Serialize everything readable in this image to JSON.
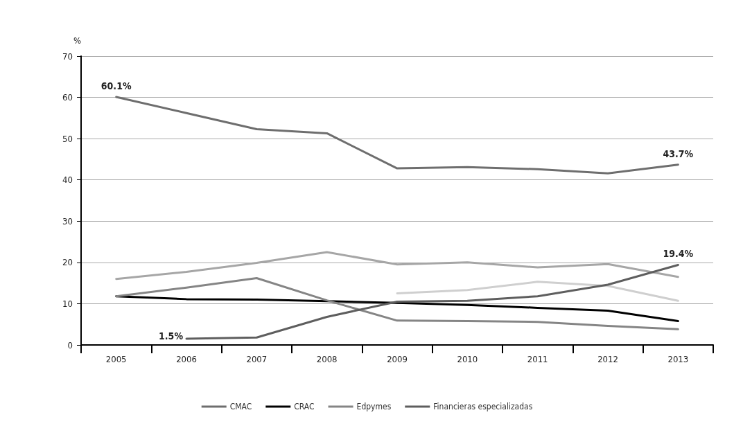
{
  "chart_data": {
    "type": "line",
    "ylabel": "%",
    "categories": [
      "2005",
      "2006",
      "2007",
      "2008",
      "2009",
      "2010",
      "2011",
      "2012",
      "2013"
    ],
    "series": [
      {
        "name": "CMAC",
        "color": "#6e6e6e",
        "values": [
          60.1,
          56.2,
          52.3,
          51.3,
          42.8,
          43.1,
          42.6,
          41.6,
          43.7
        ],
        "value_labels": [
          "60.1%",
          null,
          null,
          null,
          null,
          null,
          null,
          null,
          "43.7%"
        ]
      },
      {
        "name": "CRAC",
        "color": "#000000",
        "values": [
          11.8,
          11.1,
          11.0,
          10.6,
          10.2,
          9.7,
          9.0,
          8.3,
          5.8
        ]
      },
      {
        "name": "Edpymes",
        "color": "#858585",
        "values": [
          11.8,
          13.9,
          16.2,
          10.8,
          5.9,
          5.8,
          5.6,
          4.6,
          3.8
        ]
      },
      {
        "color": "#a6a6a6",
        "values": [
          16.0,
          17.7,
          19.9,
          22.5,
          19.5,
          20.0,
          18.8,
          19.6,
          16.5
        ]
      },
      {
        "color": "#cfcfcf",
        "values": [
          null,
          null,
          null,
          null,
          12.5,
          13.3,
          15.3,
          14.3,
          10.7
        ]
      },
      {
        "name": "Financieras especializadas",
        "color": "#5e5e5e",
        "values": [
          null,
          1.5,
          1.8,
          6.8,
          10.5,
          10.7,
          11.8,
          14.6,
          19.4
        ],
        "value_labels": [
          null,
          "1.5%",
          null,
          null,
          null,
          null,
          null,
          null,
          "19.4%"
        ]
      }
    ],
    "ylim": [
      0,
      70
    ],
    "yticks": [
      0,
      10,
      20,
      30,
      40,
      50,
      60,
      70
    ],
    "grid": "y",
    "legend": "bottom",
    "marker": "none",
    "line_style": "solid"
  }
}
